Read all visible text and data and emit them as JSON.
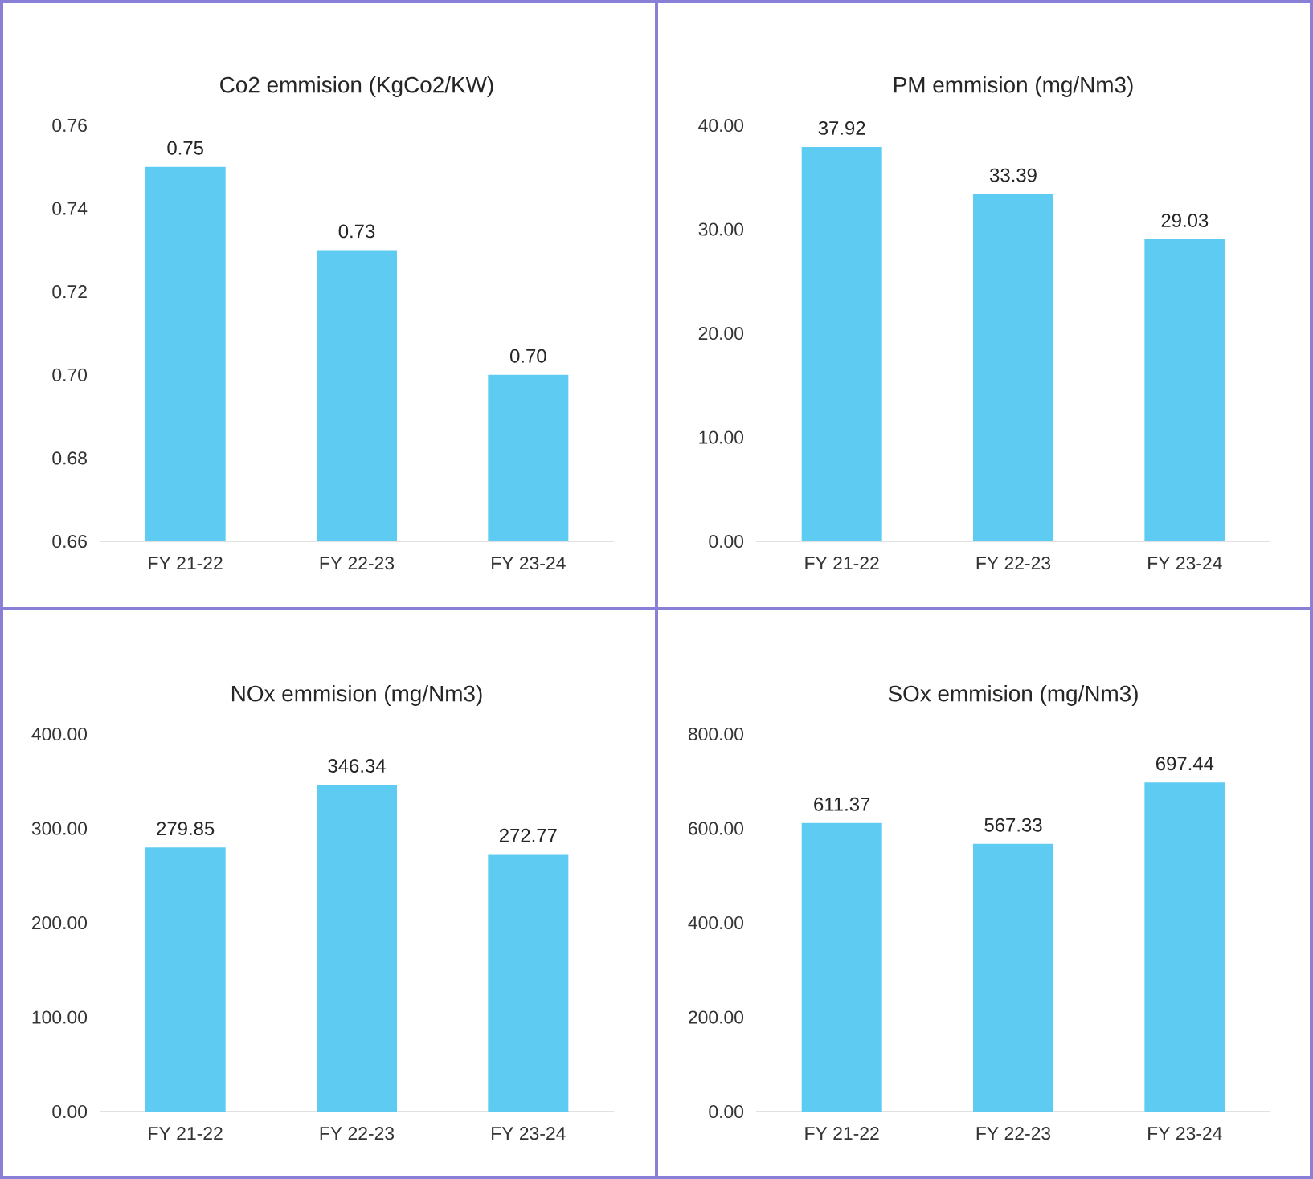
{
  "chart_data": [
    {
      "type": "bar",
      "title": "Co2 emmision (KgCo2/KW)",
      "categories": [
        "FY 21-22",
        "FY 22-23",
        "FY 23-24"
      ],
      "values": [
        0.75,
        0.73,
        0.7
      ],
      "value_labels": [
        "0.75",
        "0.73",
        "0.70"
      ],
      "color": "#5ecbf2",
      "ylim": [
        0.66,
        0.76
      ],
      "yticks": [
        {
          "value": 0.66,
          "label": "0.66"
        },
        {
          "value": 0.68,
          "label": "0.68"
        },
        {
          "value": 0.7,
          "label": "0.70"
        },
        {
          "value": 0.72,
          "label": "0.72"
        },
        {
          "value": 0.74,
          "label": "0.74"
        },
        {
          "value": 0.76,
          "label": "0.76"
        }
      ]
    },
    {
      "type": "bar",
      "title": "PM emmision (mg/Nm3)",
      "categories": [
        "FY 21-22",
        "FY 22-23",
        "FY 23-24"
      ],
      "values": [
        37.92,
        33.39,
        29.03
      ],
      "data_labels": true,
      "color": "#5ecbf2",
      "ylim": [
        0,
        40
      ],
      "yticks": [
        {
          "value": 0,
          "label": "0.00"
        },
        {
          "value": 10,
          "label": "10.00"
        },
        {
          "value": 20,
          "label": "20.00"
        },
        {
          "value": 30,
          "label": "30.00"
        },
        {
          "value": 40,
          "label": "40.00"
        }
      ]
    },
    {
      "type": "bar",
      "title": "NOx emmision (mg/Nm3)",
      "categories": [
        "FY 21-22",
        "FY 22-23",
        "FY 23-24"
      ],
      "values": [
        279.85,
        346.34,
        272.77
      ],
      "data_labels": true,
      "color": "#5ecbf2",
      "ylim": [
        0,
        400
      ],
      "yticks": [
        {
          "value": 0,
          "label": "0.00"
        },
        {
          "value": 100,
          "label": "100.00"
        },
        {
          "value": 200,
          "label": "200.00"
        },
        {
          "value": 300,
          "label": "300.00"
        },
        {
          "value": 400,
          "label": "400.00"
        }
      ]
    },
    {
      "type": "bar",
      "title": "SOx emmision (mg/Nm3)",
      "categories": [
        "FY 21-22",
        "FY 22-23",
        "FY 23-24"
      ],
      "values": [
        611.37,
        567.33,
        697.44
      ],
      "data_labels": true,
      "color": "#5ecbf2",
      "ylim": [
        0,
        800
      ],
      "yticks": [
        {
          "value": 0,
          "label": "0.00"
        },
        {
          "value": 200,
          "label": "200.00"
        },
        {
          "value": 400,
          "label": "400.00"
        },
        {
          "value": 600,
          "label": "600.00"
        },
        {
          "value": 800,
          "label": "800.00"
        }
      ]
    }
  ]
}
